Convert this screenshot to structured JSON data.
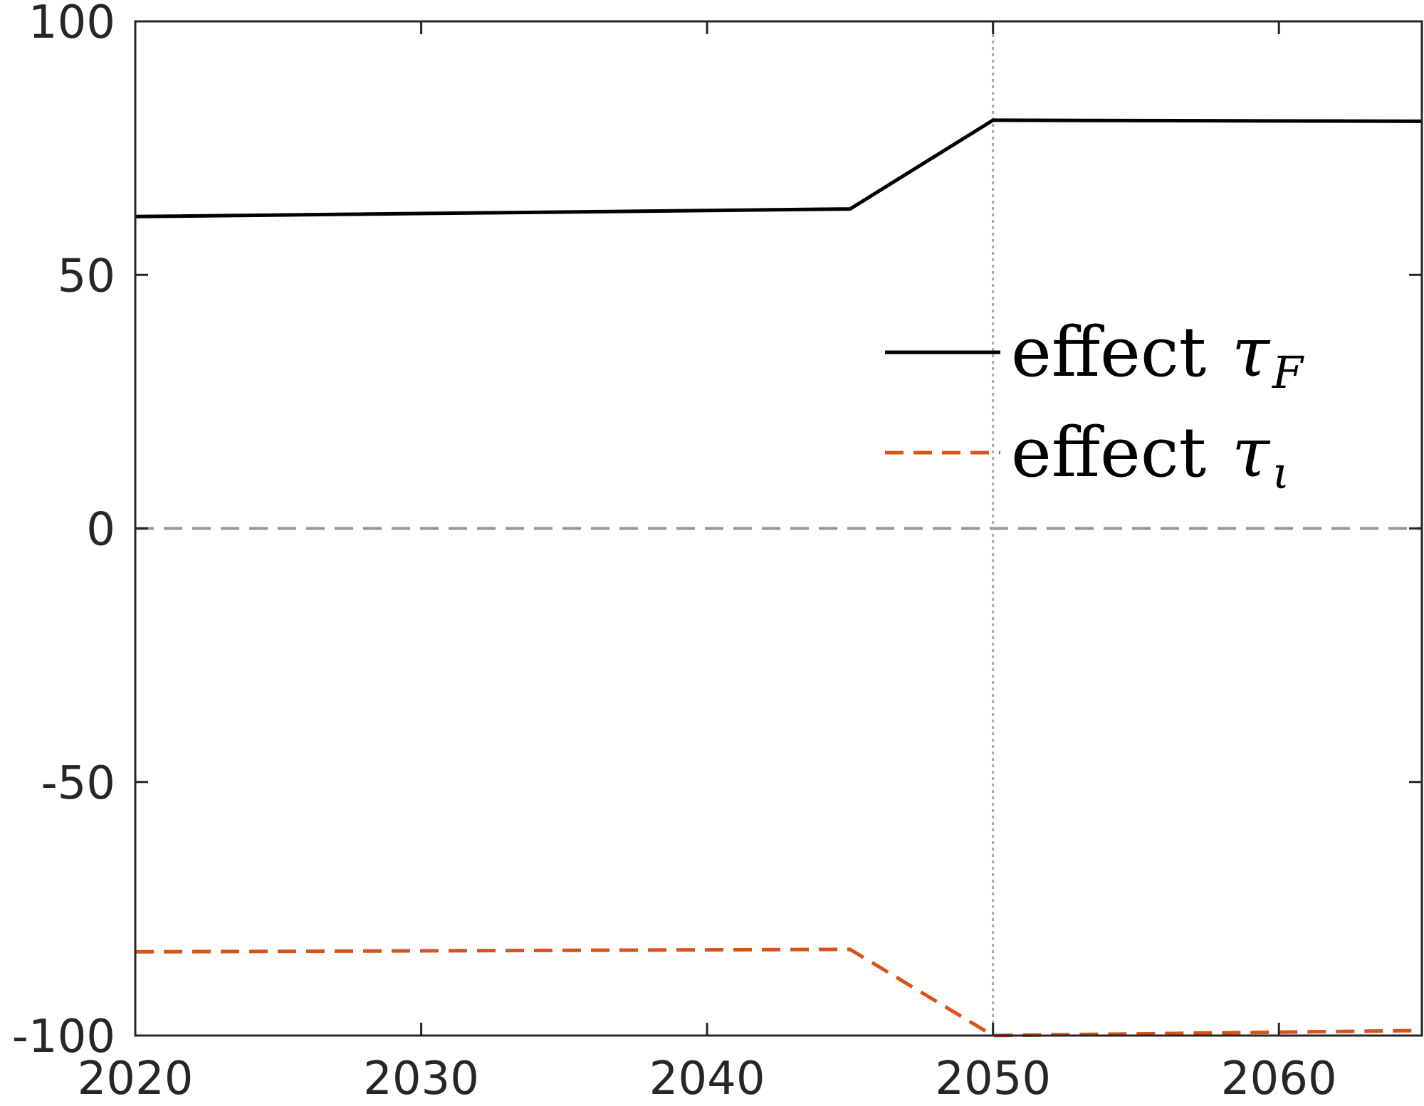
{
  "chart_data": {
    "type": "line",
    "title": "",
    "xlabel": "",
    "ylabel": "",
    "xlim": [
      2020,
      2065
    ],
    "ylim": [
      -100,
      100
    ],
    "xticks": [
      2020,
      2030,
      2040,
      2050,
      2060
    ],
    "yticks": [
      -100,
      -50,
      0,
      50,
      100
    ],
    "xtick_labels": [
      "2020",
      "2030",
      "2040",
      "2050",
      "2060"
    ],
    "ytick_labels": [
      "-100",
      "-50",
      "0",
      "50",
      "100"
    ],
    "grid": false,
    "legend_position": "center-right",
    "reference_lines": {
      "horizontal": {
        "y": 0,
        "style": "dashed",
        "color": "#969696"
      },
      "vertical": {
        "x": 2050,
        "style": "dotted",
        "color": "#a8a8a8"
      }
    },
    "series": [
      {
        "legend_text": "effect",
        "legend_symbol": "τ",
        "legend_subscript": "F",
        "color": "#000000",
        "style": "solid",
        "x": [
          2020,
          2045,
          2050,
          2065
        ],
        "y": [
          61.5,
          63.0,
          80.5,
          80.3
        ]
      },
      {
        "legend_text": "effect",
        "legend_symbol": "τ",
        "legend_subscript": "ι",
        "color": "#d95319",
        "style": "dashed",
        "x": [
          2020,
          2045,
          2050,
          2065
        ],
        "y": [
          -83.5,
          -83.0,
          -100.0,
          -99.0
        ]
      }
    ]
  }
}
